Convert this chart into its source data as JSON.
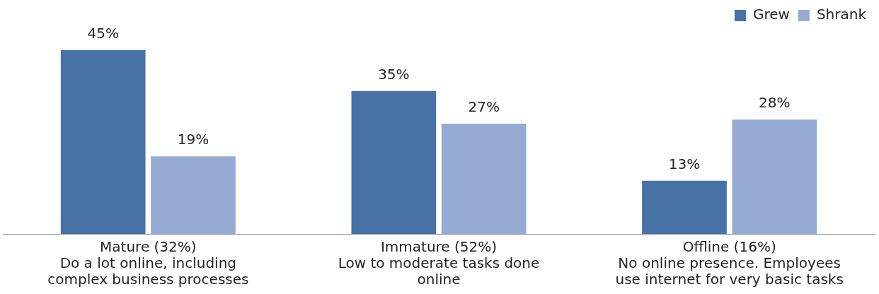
{
  "chart_data": {
    "type": "bar",
    "categories": [
      "Mature (32%)\nDo a lot online, including\ncomplex business processes",
      "Immature (52%)\nLow to moderate tasks done\nonline",
      "Offline (16%)\nNo online presence. Employees\nuse internet for very basic tasks"
    ],
    "series": [
      {
        "name": "Grew",
        "color": "#4672a6",
        "values": [
          45,
          35,
          13
        ],
        "value_labels": [
          "45%",
          "35%",
          "13%"
        ]
      },
      {
        "name": "Shrank",
        "color": "#95abd3",
        "values": [
          19,
          27,
          28
        ],
        "value_labels": [
          "19%",
          "27%",
          "28%"
        ]
      }
    ],
    "legend": "top right",
    "grid": false
  }
}
